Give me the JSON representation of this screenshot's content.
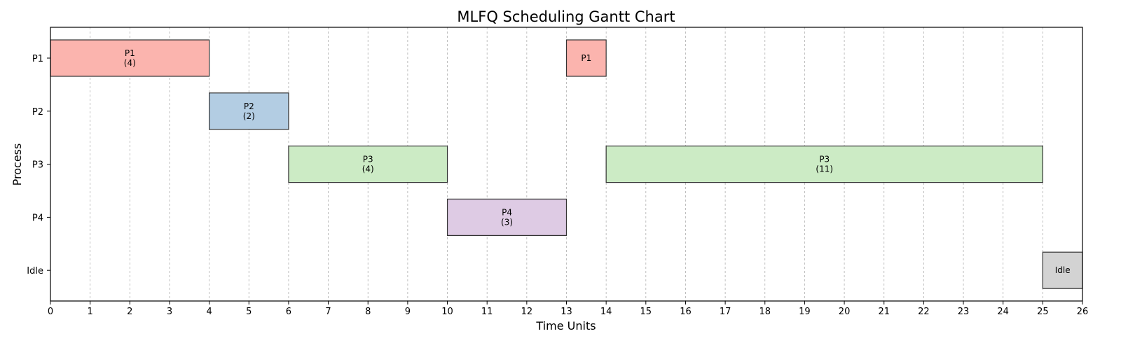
{
  "chart_data": {
    "type": "gantt",
    "title": "MLFQ Scheduling Gantt Chart",
    "xlabel": "Time Units",
    "ylabel": "Process",
    "xlim": [
      0,
      26
    ],
    "xticks": [
      0,
      1,
      2,
      3,
      4,
      5,
      6,
      7,
      8,
      9,
      10,
      11,
      12,
      13,
      14,
      15,
      16,
      17,
      18,
      19,
      20,
      21,
      22,
      23,
      24,
      25,
      26
    ],
    "categories": [
      "P1",
      "P2",
      "P3",
      "P4",
      "Idle"
    ],
    "grid": "vertical-dashed",
    "colors": {
      "P1": "#fbb4ae",
      "P2": "#b3cde3",
      "P3": "#ccebc5",
      "P4": "#decbe4",
      "Idle": "#d3d3d3"
    },
    "segments": [
      {
        "process": "P1",
        "start": 0,
        "end": 4,
        "label": "P1",
        "sublabel": "(4)"
      },
      {
        "process": "P2",
        "start": 4,
        "end": 6,
        "label": "P2",
        "sublabel": "(2)"
      },
      {
        "process": "P3",
        "start": 6,
        "end": 10,
        "label": "P3",
        "sublabel": "(4)"
      },
      {
        "process": "P4",
        "start": 10,
        "end": 13,
        "label": "P4",
        "sublabel": "(3)"
      },
      {
        "process": "P1",
        "start": 13,
        "end": 14,
        "label": "P1",
        "sublabel": ""
      },
      {
        "process": "P3",
        "start": 14,
        "end": 25,
        "label": "P3",
        "sublabel": "(11)"
      },
      {
        "process": "Idle",
        "start": 25,
        "end": 26,
        "label": "Idle",
        "sublabel": ""
      }
    ]
  }
}
